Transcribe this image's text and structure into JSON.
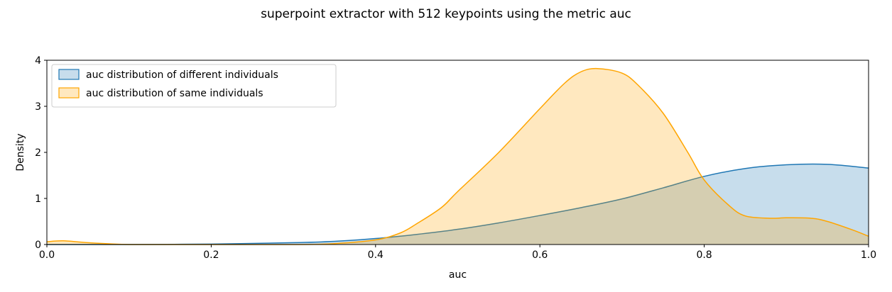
{
  "chart_data": {
    "type": "area",
    "title": "superpoint extractor with 512 keypoints using the metric auc",
    "xlabel": "auc",
    "ylabel": "Density",
    "xlim": [
      0.0,
      1.0
    ],
    "ylim": [
      0,
      4
    ],
    "xticks": [
      "0.0",
      "0.2",
      "0.4",
      "0.6",
      "0.8",
      "1.0"
    ],
    "yticks": [
      "0",
      "1",
      "2",
      "3",
      "4"
    ],
    "grid": false,
    "legend_position": "top-left",
    "series": [
      {
        "name": "auc distribution of different individuals",
        "color": "#1f77b4",
        "fill_opacity": 0.25,
        "x": [
          0.0,
          0.1,
          0.2,
          0.3,
          0.35,
          0.4,
          0.45,
          0.5,
          0.55,
          0.6,
          0.65,
          0.7,
          0.75,
          0.8,
          0.85,
          0.9,
          0.95,
          1.0
        ],
        "y": [
          0.0,
          0.0,
          0.01,
          0.04,
          0.07,
          0.13,
          0.22,
          0.33,
          0.47,
          0.63,
          0.8,
          0.99,
          1.23,
          1.48,
          1.65,
          1.73,
          1.74,
          1.66
        ]
      },
      {
        "name": "auc distribution of same individuals",
        "color": "#ffa500",
        "fill_opacity": 0.25,
        "x": [
          0.0,
          0.02,
          0.05,
          0.1,
          0.15,
          0.2,
          0.3,
          0.35,
          0.4,
          0.43,
          0.45,
          0.48,
          0.5,
          0.55,
          0.6,
          0.63,
          0.65,
          0.67,
          0.7,
          0.72,
          0.75,
          0.78,
          0.8,
          0.83,
          0.85,
          0.88,
          0.9,
          0.93,
          0.95,
          0.98,
          1.0
        ],
        "y": [
          0.06,
          0.08,
          0.04,
          0.0,
          0.0,
          0.0,
          0.0,
          0.02,
          0.1,
          0.25,
          0.45,
          0.8,
          1.15,
          2.0,
          2.95,
          3.5,
          3.75,
          3.82,
          3.72,
          3.45,
          2.85,
          2.0,
          1.4,
          0.85,
          0.62,
          0.57,
          0.58,
          0.57,
          0.5,
          0.32,
          0.18
        ]
      }
    ]
  }
}
